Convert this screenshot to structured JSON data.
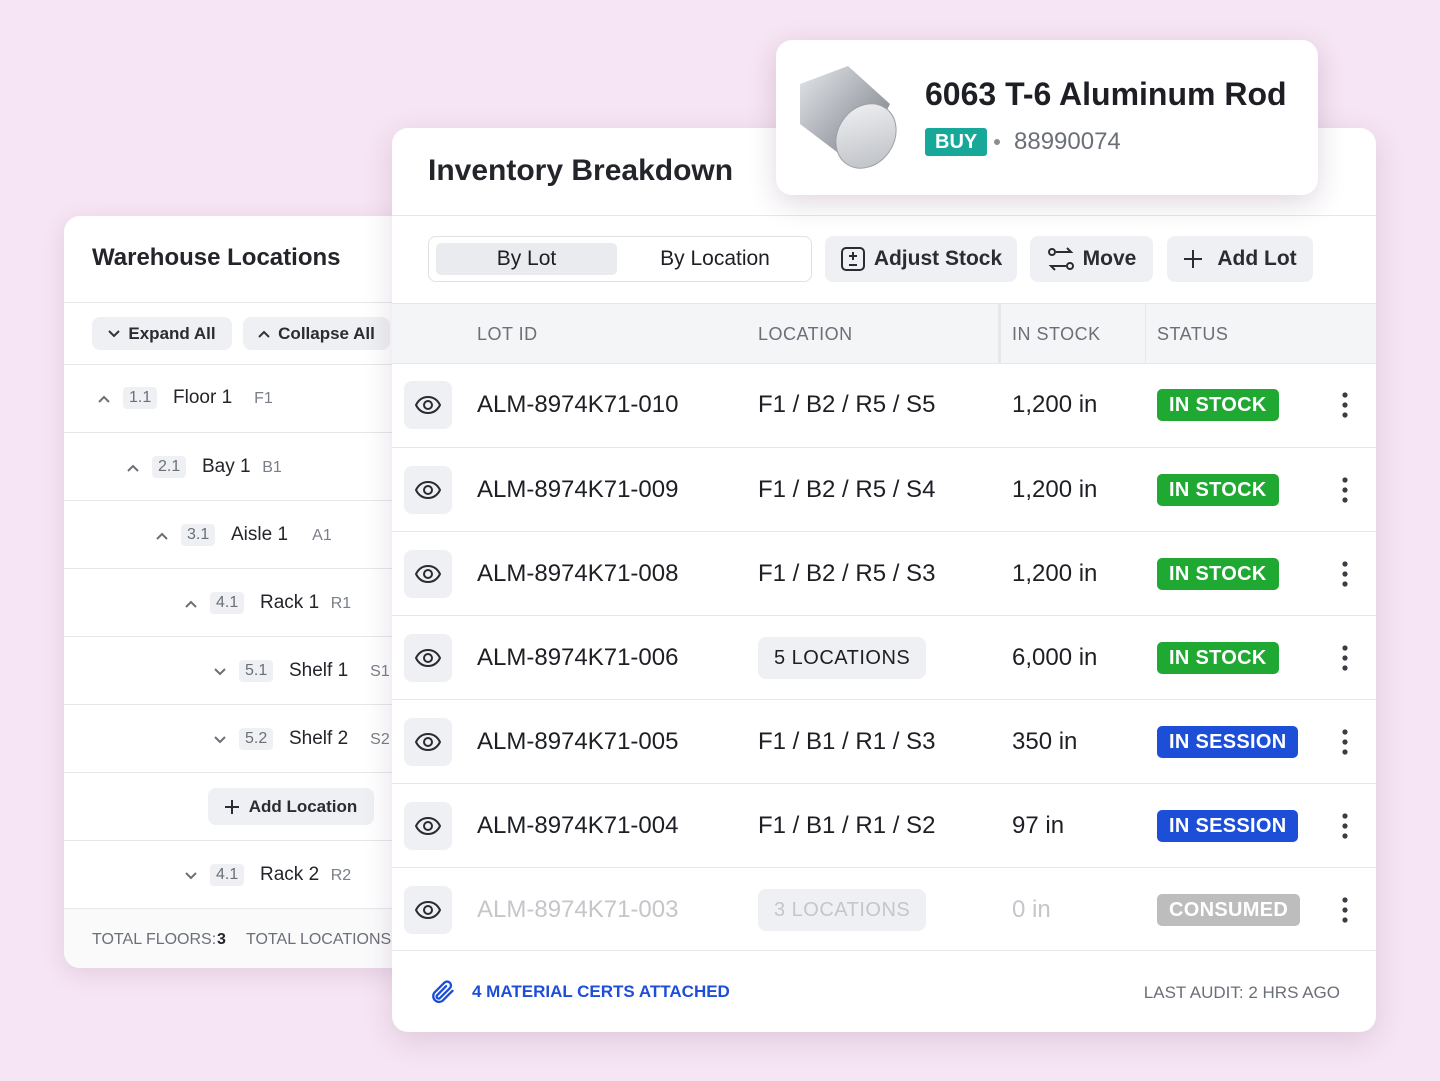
{
  "product": {
    "name": "6063 T-6 Aluminum Rod",
    "tag": "BUY",
    "part_number": "88990074"
  },
  "warehouse": {
    "title": "Warehouse Locations",
    "actions": [
      "Expand All",
      "Collapse All"
    ],
    "tree": [
      {
        "number": "1.1",
        "name": "Floor 1",
        "code": "F1"
      },
      {
        "number": "2.1",
        "name": "Bay 1",
        "code": "B1"
      },
      {
        "number": "3.1",
        "name": "Aisle 1",
        "code": "A1"
      },
      {
        "number": "4.1",
        "name": "Rack 1",
        "code": "R1"
      },
      {
        "number": "5.1",
        "name": "Shelf 1",
        "code": "S1"
      },
      {
        "number": "5.2",
        "name": "Shelf 2",
        "code": "S2"
      },
      {
        "number": "4.1",
        "name": "Rack 2",
        "code": "R2"
      }
    ],
    "add_location": "Add Location",
    "footer": {
      "floors_label": "TOTAL FLOORS:",
      "floors_value": "3",
      "locations_label": "TOTAL LOCATIONS"
    }
  },
  "inventory": {
    "title": "Inventory Breakdown",
    "tabs": [
      "By Lot",
      "By Location"
    ],
    "buttons": [
      "Adjust Stock",
      "Move",
      "Add Lot"
    ],
    "columns": [
      "LOT ID",
      "LOCATION",
      "IN STOCK",
      "STATUS"
    ],
    "rows": [
      {
        "lot_id": "ALM-8974K71-010",
        "location": "F1 / B2 / R5 / S5",
        "in_stock": "1,200 in",
        "status": "IN STOCK",
        "status_color": "#1fa832"
      },
      {
        "lot_id": "ALM-8974K71-009",
        "location": "F1 / B2 / R5 / S4",
        "in_stock": "1,200 in",
        "status": "IN STOCK",
        "status_color": "#1fa832"
      },
      {
        "lot_id": "ALM-8974K71-008",
        "location": "F1 / B2 / R5 / S3",
        "in_stock": "1,200 in",
        "status": "IN STOCK",
        "status_color": "#1fa832"
      },
      {
        "lot_id": "ALM-8974K71-006",
        "locations": "5 LOCATIONS",
        "in_stock": "6,000 in",
        "status": "IN STOCK",
        "status_color": "#1fa832"
      },
      {
        "lot_id": "ALM-8974K71-005",
        "location": "F1 / B1 / R1 / S3",
        "in_stock": "350 in",
        "status": "IN SESSION",
        "status_color": "#1d4ed8"
      },
      {
        "lot_id": "ALM-8974K71-004",
        "location": "F1 / B1 / R1 / S2",
        "in_stock": "97 in",
        "status": "IN SESSION",
        "status_color": "#1d4ed8"
      },
      {
        "lot_id": "ALM-8974K71-003",
        "locations": "3 LOCATIONS",
        "in_stock": "0 in",
        "status": "CONSUMED",
        "status_color": "#bdbdbd",
        "disabled": true
      }
    ],
    "certs": "4 MATERIAL CERTS ATTACHED",
    "last_audit": "LAST AUDIT: 2 HRS AGO"
  }
}
